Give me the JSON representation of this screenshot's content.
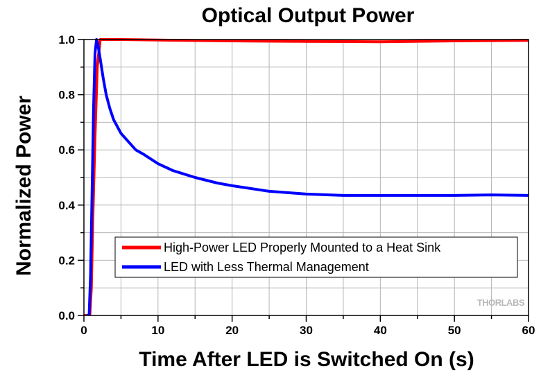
{
  "chart_data": {
    "type": "line",
    "title": "Optical Output Power",
    "xlabel": "Time After LED is Switched On (s)",
    "ylabel": "Normalized Power",
    "xlim": [
      0,
      60
    ],
    "ylim": [
      0,
      1.0
    ],
    "xticks": [
      0,
      10,
      20,
      30,
      40,
      50,
      60
    ],
    "yticks": [
      0.0,
      0.2,
      0.4,
      0.6,
      0.8,
      1.0
    ],
    "xtick_labels": [
      "0",
      "10",
      "20",
      "30",
      "40",
      "50",
      "60"
    ],
    "ytick_labels": [
      "0.0",
      "0.2",
      "0.4",
      "0.6",
      "0.8",
      "1.0"
    ],
    "grid": true,
    "legend_position": "bottom-left",
    "series": [
      {
        "name": "High-Power LED Properly Mounted to a Heat Sink",
        "color": "#ff0000",
        "x": [
          0,
          0.8,
          1.0,
          1.2,
          1.5,
          1.8,
          2.2,
          2.6,
          3,
          5,
          10,
          20,
          30,
          40,
          50,
          60
        ],
        "y": [
          0,
          0.0,
          0.1,
          0.35,
          0.65,
          0.9,
          1.0,
          1.0,
          1.0,
          1.0,
          0.998,
          0.995,
          0.993,
          0.992,
          0.995,
          0.997
        ]
      },
      {
        "name": "LED with Less Thermal Management",
        "color": "#0000ff",
        "x": [
          0.5,
          0.7,
          0.9,
          1.1,
          1.3,
          1.5,
          1.7,
          1.9,
          2.2,
          2.6,
          3,
          3.5,
          4,
          5,
          6,
          7,
          8,
          10,
          12,
          15,
          18,
          20,
          25,
          30,
          35,
          40,
          45,
          50,
          55,
          60
        ],
        "y": [
          0.0,
          0.0,
          0.15,
          0.45,
          0.75,
          0.95,
          1.0,
          0.98,
          0.93,
          0.86,
          0.8,
          0.75,
          0.71,
          0.66,
          0.63,
          0.6,
          0.585,
          0.55,
          0.525,
          0.5,
          0.48,
          0.47,
          0.45,
          0.44,
          0.435,
          0.435,
          0.435,
          0.435,
          0.437,
          0.435
        ]
      }
    ],
    "watermark": "THORLABS"
  }
}
